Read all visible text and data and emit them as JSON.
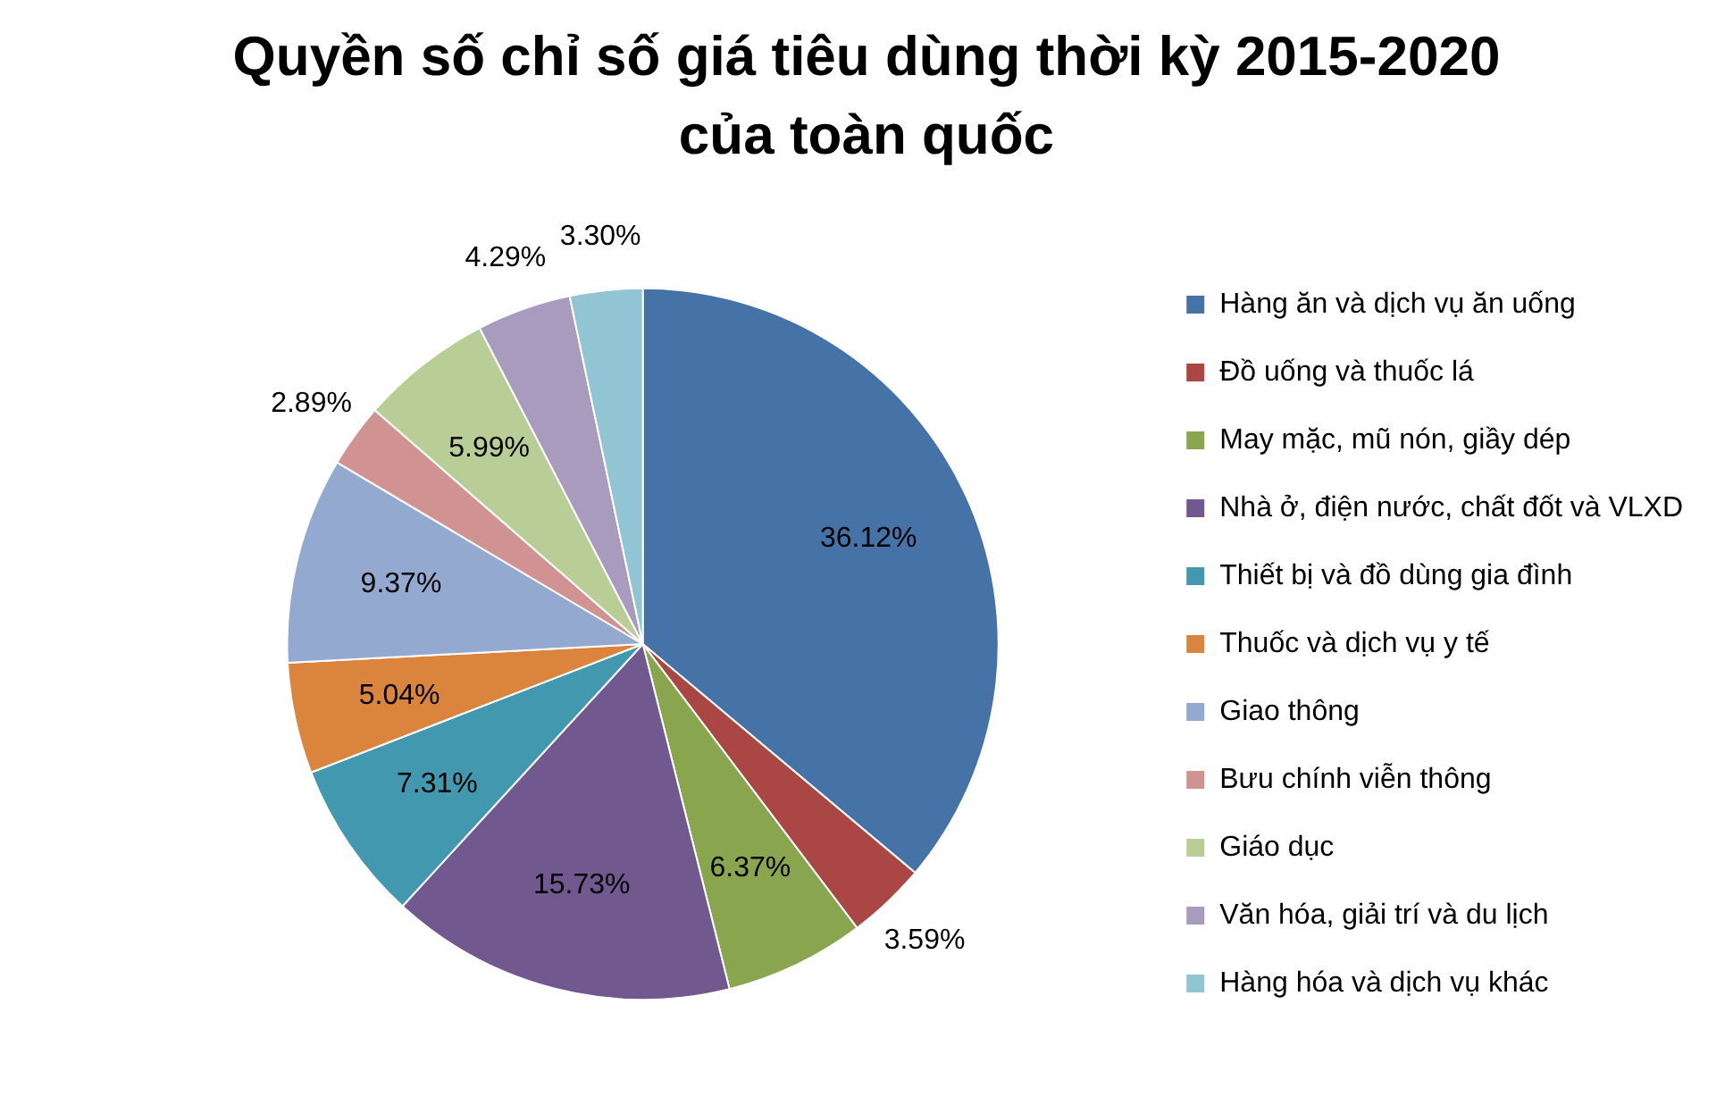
{
  "chart_data": {
    "type": "pie",
    "title": "Quyền số chỉ số giá tiêu dùng thời kỳ 2015-2020 của toàn quốc",
    "categories": [
      "Hàng ăn và dịch vụ ăn uống",
      "Đồ uống và thuốc lá",
      "May mặc, mũ nón, giầy dép",
      "Nhà ở, điện nước, chất đốt và VLXD",
      "Thiết bị và đồ dùng gia đình",
      "Thuốc và dịch vụ y tế",
      "Giao thông",
      "Bưu chính viễn thông",
      "Giáo dục",
      "Văn hóa, giải trí và du lịch",
      "Hàng hóa và dịch vụ khác"
    ],
    "values": [
      36.12,
      3.59,
      6.37,
      15.73,
      7.31,
      5.04,
      9.37,
      2.89,
      5.99,
      4.29,
      3.3
    ],
    "value_labels": [
      "36.12%",
      "3.59%",
      "6.37%",
      "15.73%",
      "7.31%",
      "5.04%",
      "9.37%",
      "2.89%",
      "5.99%",
      "4.29%",
      "3.30%"
    ],
    "colors": [
      "#4572a7",
      "#aa4643",
      "#89a54e",
      "#71588f",
      "#4198af",
      "#db843d",
      "#93a9cf",
      "#d19392",
      "#b9cd96",
      "#a99bbd",
      "#92c5d4"
    ],
    "legend": "right"
  }
}
